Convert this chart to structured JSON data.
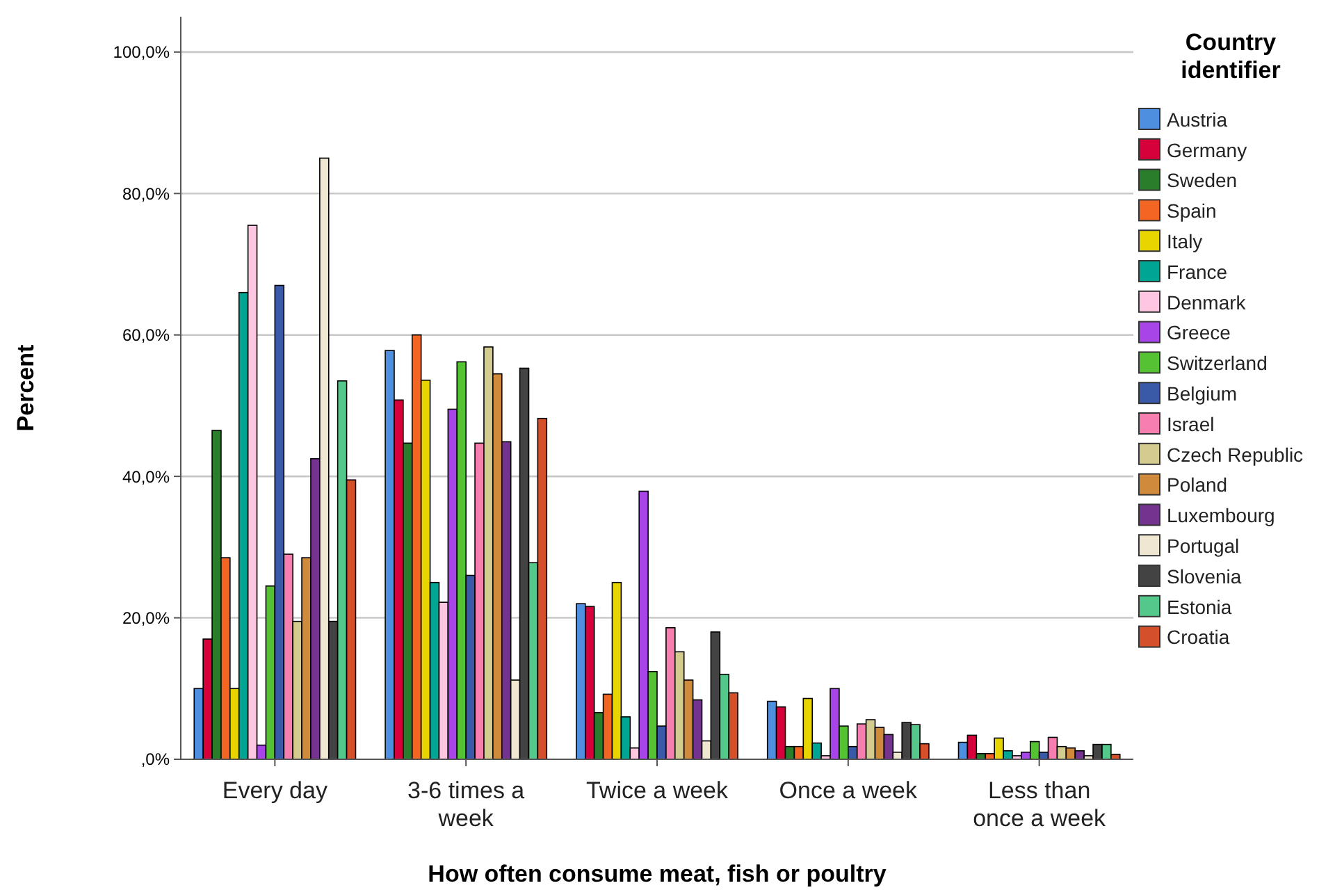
{
  "chart_data": {
    "type": "bar",
    "xlabel": "How often consume meat, fish or poultry",
    "ylabel": "Percent",
    "legend_title": "Country identifier",
    "legend": "right",
    "grid": "y",
    "categories": [
      "Every day",
      "3-6 times a week",
      "Twice a week",
      "Once a week",
      "Less than once a week"
    ],
    "ylim": [
      0,
      105
    ],
    "yticks": [
      {
        "value": 0,
        "label": ",0%"
      },
      {
        "value": 20,
        "label": "20,0%"
      },
      {
        "value": 40,
        "label": "40,0%"
      },
      {
        "value": 60,
        "label": "60,0%"
      },
      {
        "value": 80,
        "label": "80,0%"
      },
      {
        "value": 100,
        "label": "100,0%"
      }
    ],
    "series": [
      {
        "name": "Austria",
        "color": "#4f8fe0",
        "values": [
          10,
          57.8,
          22,
          8.2,
          2.4
        ]
      },
      {
        "name": "Germany",
        "color": "#d6003b",
        "values": [
          17,
          50.8,
          21.6,
          7.4,
          3.4
        ]
      },
      {
        "name": "Sweden",
        "color": "#2a7d2a",
        "values": [
          46.5,
          44.7,
          6.6,
          1.8,
          0.8
        ]
      },
      {
        "name": "Spain",
        "color": "#f26522",
        "values": [
          28.5,
          60,
          9.2,
          1.8,
          0.8
        ]
      },
      {
        "name": "Italy",
        "color": "#e8d500",
        "values": [
          10,
          53.6,
          25,
          8.6,
          3
        ]
      },
      {
        "name": "France",
        "color": "#00a693",
        "values": [
          66,
          25,
          6,
          2.3,
          1.2
        ]
      },
      {
        "name": "Denmark",
        "color": "#ffc6e2",
        "values": [
          75.5,
          22.2,
          1.6,
          0.5,
          0.5
        ]
      },
      {
        "name": "Greece",
        "color": "#a745e8",
        "values": [
          2,
          49.5,
          37.9,
          10,
          1
        ]
      },
      {
        "name": "Switzerland",
        "color": "#55c234",
        "values": [
          24.5,
          56.2,
          12.4,
          4.7,
          2.5
        ]
      },
      {
        "name": "Belgium",
        "color": "#3a5aa8",
        "values": [
          67,
          26,
          4.7,
          1.8,
          1
        ]
      },
      {
        "name": "Israel",
        "color": "#f77fb0",
        "values": [
          29,
          44.7,
          18.6,
          5,
          3.1
        ]
      },
      {
        "name": "Czech Republic",
        "color": "#d4cb8e",
        "values": [
          19.5,
          58.3,
          15.2,
          5.6,
          1.8
        ]
      },
      {
        "name": "Poland",
        "color": "#d08a3c",
        "values": [
          28.5,
          54.5,
          11.2,
          4.5,
          1.6
        ]
      },
      {
        "name": "Luxembourg",
        "color": "#73338f",
        "values": [
          42.5,
          44.9,
          8.4,
          3.5,
          1.2
        ]
      },
      {
        "name": "Portugal",
        "color": "#efe7d2",
        "values": [
          85,
          11.2,
          2.6,
          1,
          0.5
        ]
      },
      {
        "name": "Slovenia",
        "color": "#434343",
        "values": [
          19.5,
          55.3,
          18,
          5.2,
          2.1
        ]
      },
      {
        "name": "Estonia",
        "color": "#54c88a",
        "values": [
          53.5,
          27.8,
          12,
          4.9,
          2.1
        ]
      },
      {
        "name": "Croatia",
        "color": "#d4502b",
        "values": [
          39.5,
          48.2,
          9.4,
          2.2,
          0.7
        ]
      }
    ]
  }
}
